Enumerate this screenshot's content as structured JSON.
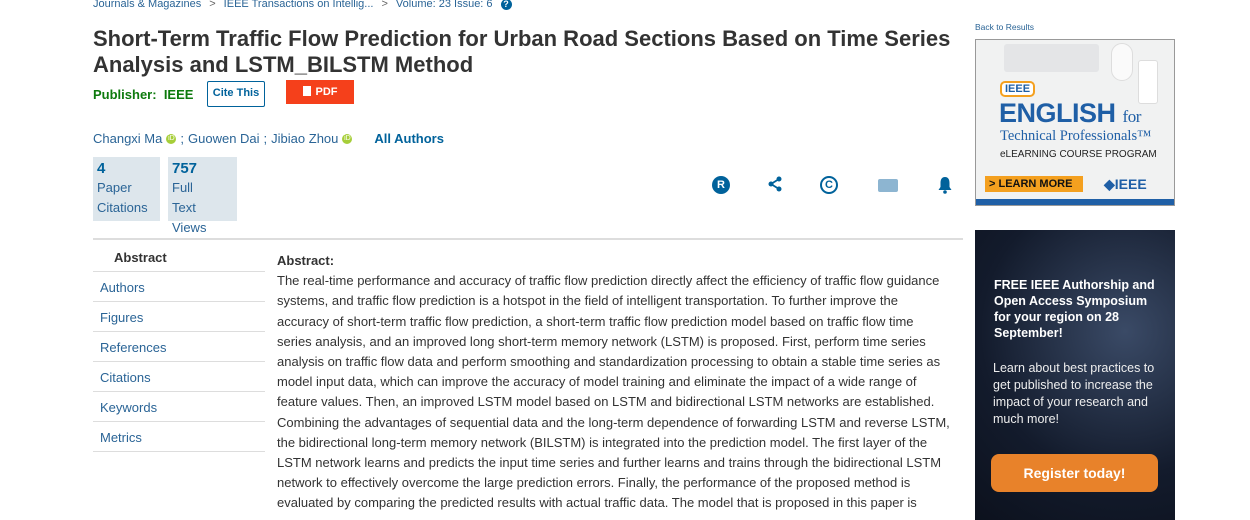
{
  "breadcrumb": {
    "items": [
      "Journals & Magazines",
      "IEEE Transactions on Intellig...",
      "Volume: 23 Issue: 6"
    ],
    "separator": ">",
    "help_icon": "question-circle-icon"
  },
  "article": {
    "title": "Short-Term Traffic Flow Prediction for Urban Road Sections Based on Time Series Analysis and LSTM_BILSTM Method",
    "publisher_label": "Publisher:",
    "publisher": "IEEE",
    "cite_label": "Cite This",
    "pdf_label": "PDF",
    "authors": [
      {
        "name": "Changxi Ma",
        "orcid": true
      },
      {
        "name": "Guowen Dai",
        "orcid": false
      },
      {
        "name": "Jibiao Zhou",
        "orcid": true
      }
    ],
    "author_sep": ";",
    "all_authors": "All Authors",
    "metrics": [
      {
        "value": "4",
        "l1": "Paper",
        "l2": "Citations",
        "l3": ""
      },
      {
        "value": "757",
        "l1": "Full",
        "l2": "Text",
        "l3": "Views"
      }
    ],
    "actions": [
      "rights-permissions-icon",
      "share-icon",
      "copyright-icon",
      "folder-icon",
      "alert-bell-icon"
    ]
  },
  "sidebar": {
    "items": [
      "Abstract",
      "Authors",
      "Figures",
      "References",
      "Citations",
      "Keywords",
      "Metrics"
    ],
    "active": "Abstract"
  },
  "abstract": {
    "heading": "Abstract:",
    "lines": [
      "The real-time performance and accuracy of traffic flow prediction directly affect the efficiency of traffic flow guidance",
      "systems, and traffic flow prediction is a hotspot in the field of intelligent transportation. To further improve the",
      "accuracy of short-term traffic flow prediction, a short-term traffic flow prediction model based on traffic flow time",
      "series analysis, and an improved long short-term memory network (LSTM) is proposed. First, perform time series",
      "analysis on traffic flow data and perform smoothing and standardization processing to obtain a stable time series as",
      "model input data, which can improve the accuracy of model training and eliminate the impact of a wide range of",
      "feature values. Then, an improved LSTM model based on LSTM and bidirectional LSTM networks are established.",
      "Combining the advantages of sequential data and the long-term dependence of forwarding LSTM and reverse LSTM,",
      "the bidirectional long-term memory network (BILSTM) is integrated into the prediction model. The first layer of the",
      "LSTM network learns and predicts the input time series and further learns and trains through the bidirectional LSTM",
      "network to effectively overcome the large prediction errors. Finally, the performance of the proposed method is",
      "evaluated by comparing the predicted results with actual traffic data. The model that is proposed in this paper is"
    ]
  },
  "right": {
    "back": "Back to Results",
    "ad1": {
      "bubble": "IEEE",
      "english": "ENGLISH",
      "for": "for",
      "tech": "Technical Professionals™",
      "program": "eLEARNING COURSE PROGRAM",
      "cta": "> LEARN MORE",
      "logo": "◆IEEE"
    },
    "ad2": {
      "headline": "FREE IEEE Authorship  and Open Access Symposium for your region on 28 September!",
      "body": "Learn about best practices to get published to increase the impact of your research and much more!",
      "cta": "Register today!"
    }
  },
  "colors": {
    "link": "#2a6496",
    "brand": "#00629b",
    "pdf": "#f5401b",
    "publisher": "#0d7a0d",
    "cta": "#e8822a"
  }
}
